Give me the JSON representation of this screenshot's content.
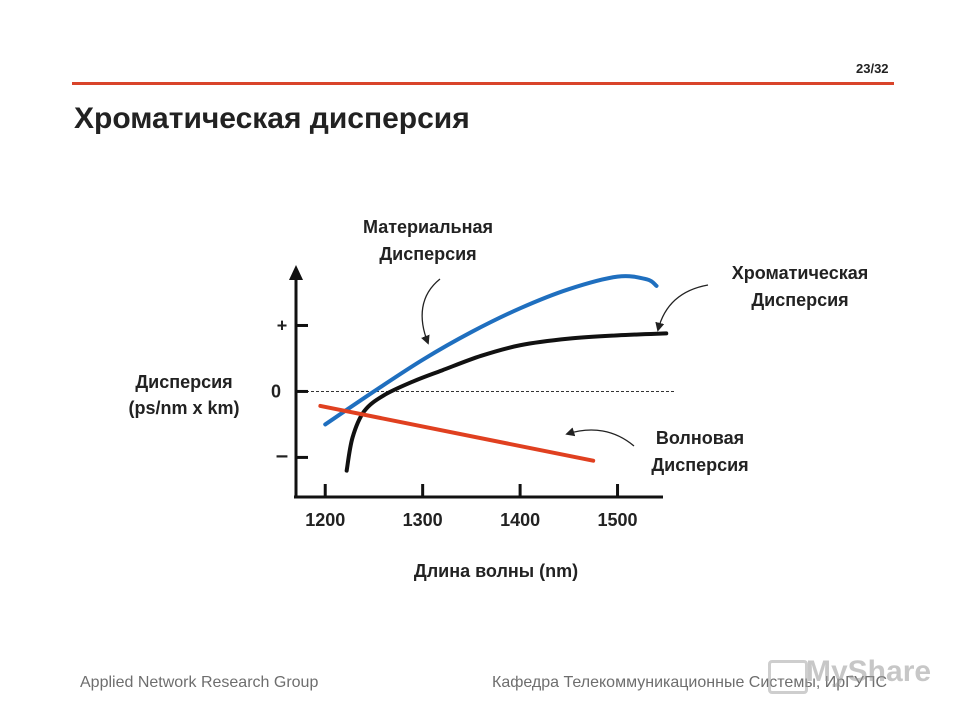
{
  "header": {
    "slide_counter": "23/32",
    "title": "Хроматическая дисперсия",
    "rule_color": "#d9442a"
  },
  "chart_data": {
    "type": "line",
    "title": "",
    "xlabel": "Длина волны (nm)",
    "ylabel": "Дисперсия (ps/nm x km)",
    "ylabel_lines": [
      "Дисперсия",
      "(ps/nm x km)"
    ],
    "x_ticks": [
      "1200",
      "1300",
      "1400",
      "1500"
    ],
    "x_tick_values": [
      1200,
      1300,
      1400,
      1500
    ],
    "xlim": [
      1170,
      1560
    ],
    "y_ticks": [
      "+",
      "0",
      "–"
    ],
    "y_tick_values": [
      1,
      0,
      -1
    ],
    "ylim": [
      -1.6,
      1.75
    ],
    "zero_line": "dashed",
    "series": [
      {
        "name": "Материальная Дисперсия",
        "label_lines": [
          "Материальная",
          "Дисперсия"
        ],
        "color": "#1f6fbf",
        "x": [
          1200,
          1250,
          1300,
          1350,
          1400,
          1450,
          1500,
          1530,
          1540
        ],
        "y": [
          -0.5,
          0.0,
          0.48,
          0.9,
          1.26,
          1.55,
          1.74,
          1.7,
          1.6
        ]
      },
      {
        "name": "Хроматическая Дисперсия",
        "label_lines": [
          "Хроматическая",
          "Дисперсия"
        ],
        "color": "#111111",
        "x": [
          1222,
          1228,
          1240,
          1260,
          1290,
          1320,
          1360,
          1400,
          1450,
          1500,
          1550
        ],
        "y": [
          -1.2,
          -0.7,
          -0.3,
          -0.06,
          0.15,
          0.32,
          0.54,
          0.7,
          0.8,
          0.85,
          0.88
        ]
      },
      {
        "name": "Волновая Дисперсия",
        "label_lines": [
          "Волновая",
          "Дисперсия"
        ],
        "color": "#e04020",
        "x": [
          1195,
          1475
        ],
        "y": [
          -0.22,
          -1.05
        ]
      }
    ]
  },
  "footer": {
    "left": "Applied Network Research Group",
    "right": "Кафедра Телекоммуникационные Системы, ИрГУПС",
    "watermark": "MyShare"
  }
}
